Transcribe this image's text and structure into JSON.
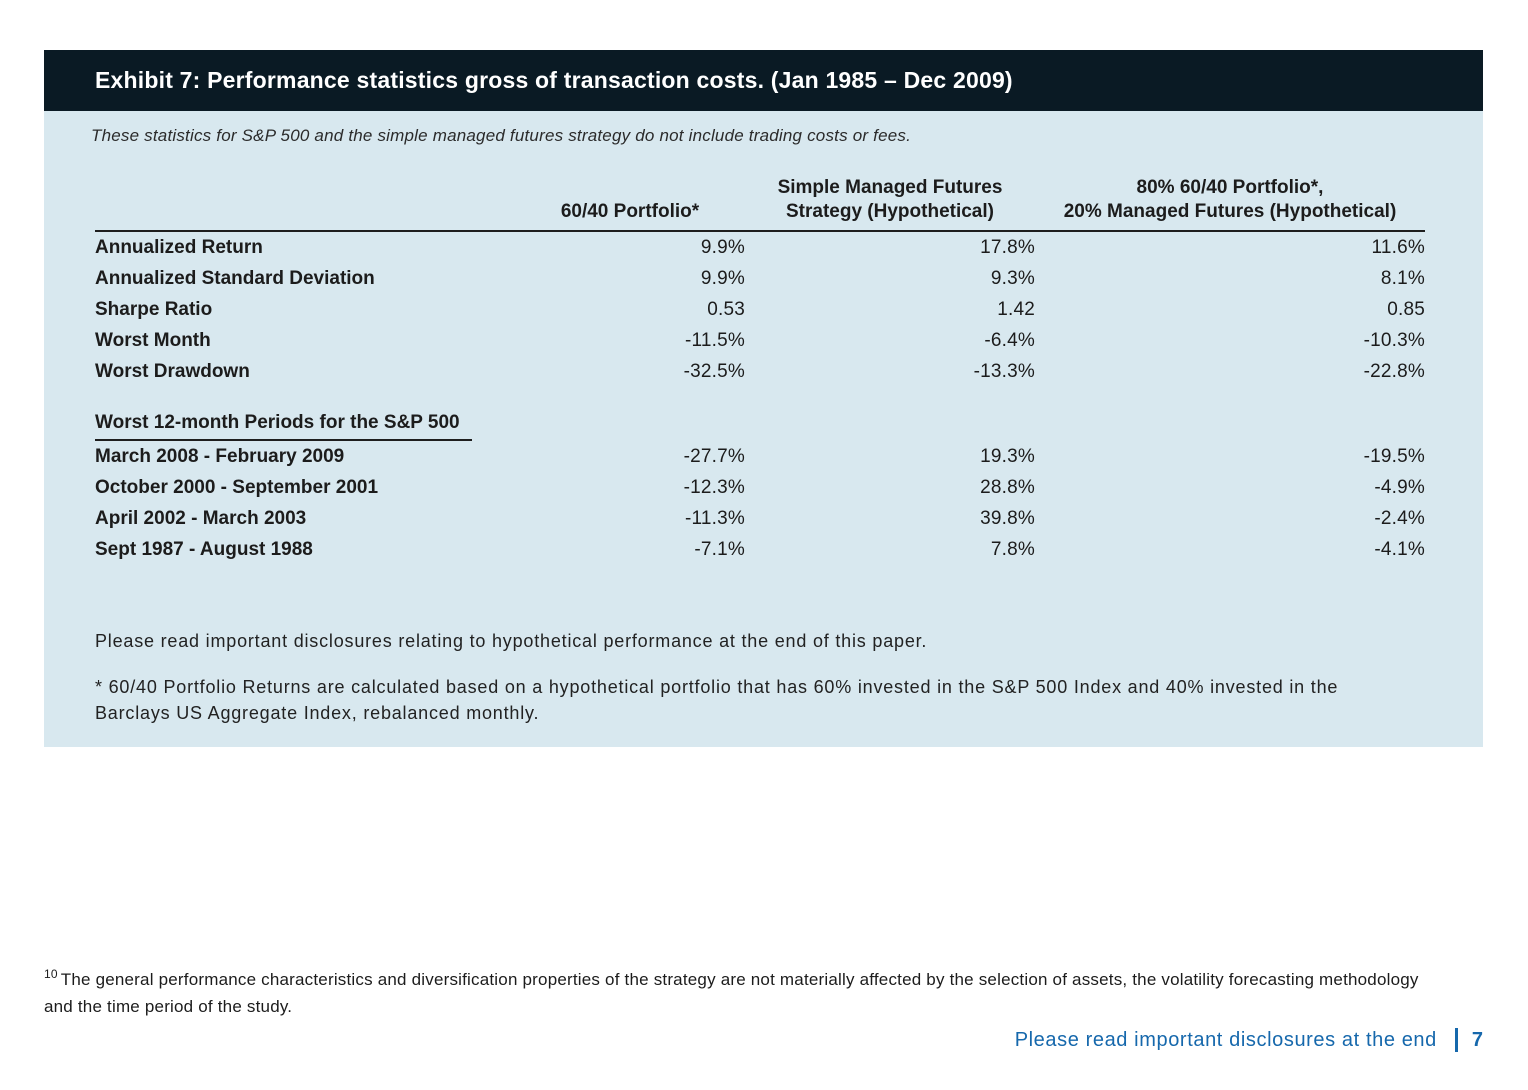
{
  "exhibit": {
    "title": "Exhibit 7: Performance statistics gross of transaction costs. (Jan 1985 – Dec 2009)",
    "subtitle": "These statistics for S&P 500 and the simple managed futures strategy do not include trading costs or fees.",
    "disclosure_note": "Please read important disclosures relating to hypothetical performance at the end of this paper.",
    "portfolio_note": "* 60/40 Portfolio Returns are calculated based on a hypothetical portfolio that has 60% invested in the S&P 500 Index and 40% invested in the Barclays US Aggregate Index, rebalanced monthly."
  },
  "chart_data": {
    "type": "table",
    "title": "Exhibit 7: Performance statistics gross of transaction costs. (Jan 1985 – Dec 2009)",
    "col_headers": [
      [
        ""
      ],
      [
        "60/40 Portfolio*"
      ],
      [
        "Simple Managed Futures",
        "Strategy (Hypothetical)"
      ],
      [
        "80% 60/40 Portfolio*,",
        "20% Managed Futures (Hypothetical)"
      ]
    ],
    "sections": [
      {
        "header": null,
        "rows": [
          {
            "label": "Annualized Return",
            "values": [
              "9.9%",
              "17.8%",
              "11.6%"
            ]
          },
          {
            "label": "Annualized Standard Deviation",
            "values": [
              "9.9%",
              "9.3%",
              "8.1%"
            ]
          },
          {
            "label": "Sharpe Ratio",
            "values": [
              "0.53",
              "1.42",
              "0.85"
            ]
          },
          {
            "label": "Worst Month",
            "values": [
              "-11.5%",
              "-6.4%",
              "-10.3%"
            ]
          },
          {
            "label": "Worst Drawdown",
            "values": [
              "-32.5%",
              "-13.3%",
              "-22.8%"
            ]
          }
        ]
      },
      {
        "header": "Worst 12-month Periods for the S&P 500",
        "rows": [
          {
            "label": "March 2008 - February 2009",
            "values": [
              "-27.7%",
              "19.3%",
              "-19.5%"
            ]
          },
          {
            "label": "October 2000 - September 2001",
            "values": [
              "-12.3%",
              "28.8%",
              "-4.9%"
            ]
          },
          {
            "label": "April 2002 - March 2003",
            "values": [
              "-11.3%",
              "39.8%",
              "-2.4%"
            ]
          },
          {
            "label": "Sept 1987 - August 1988",
            "values": [
              "-7.1%",
              "7.8%",
              "-4.1%"
            ]
          }
        ]
      }
    ]
  },
  "footnote": {
    "marker": "10",
    "text": "The general performance characteristics and diversification properties of the strategy are not materially affected by the selection of assets, the volatility forecasting methodology and the time period of the study."
  },
  "footer": {
    "disclosure_link": "Please read important disclosures at the end",
    "page_number": "7"
  },
  "colors": {
    "header_bg": "#0a1a24",
    "panel_bg": "#d8e8ef",
    "accent_blue": "#1668ac",
    "text": "#1c1c1c"
  }
}
